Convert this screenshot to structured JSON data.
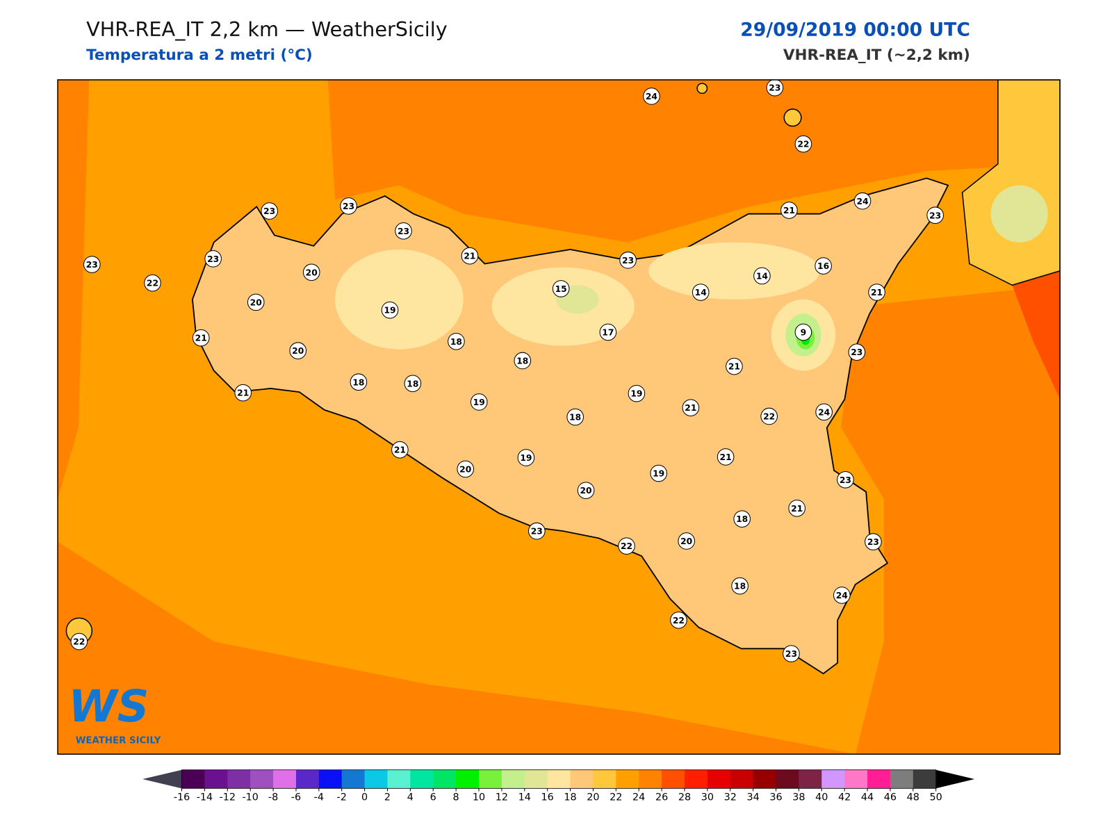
{
  "header": {
    "title": "VHR-REA_IT 2,2 km — WeatherSicily",
    "subtitle": "Temperatura a 2 metri (°C)",
    "valid_time": "29/09/2019 00:00 UTC",
    "model": "VHR-REA_IT (~2,2 km)"
  },
  "map": {
    "stations": [
      24,
      23,
      22,
      23,
      23,
      23,
      21,
      24,
      23,
      23,
      23,
      22,
      20,
      20,
      21,
      23,
      15,
      14,
      14,
      16,
      21,
      19,
      21,
      20,
      18,
      17,
      9,
      23,
      18,
      21,
      18,
      18,
      21,
      19,
      19,
      21,
      22,
      24,
      18,
      21,
      19,
      21,
      20,
      19,
      23,
      20,
      21,
      18,
      23,
      22,
      20,
      23,
      18,
      24,
      22,
      23,
      22
    ]
  },
  "logo": {
    "mark": "WS",
    "name": "WEATHER SICILY"
  },
  "colorbar": {
    "ticks": [
      -16,
      -14,
      -12,
      -10,
      -8,
      -6,
      -4,
      -2,
      0,
      2,
      4,
      6,
      8,
      10,
      12,
      14,
      16,
      18,
      20,
      22,
      24,
      26,
      28,
      30,
      32,
      34,
      36,
      38,
      40,
      42,
      44,
      46,
      48,
      50
    ],
    "colors": [
      "#4b0055",
      "#6a1190",
      "#7f2fa5",
      "#a050be",
      "#e070e8",
      "#5a28c8",
      "#0a10f5",
      "#1478d2",
      "#0ac8e6",
      "#5af0d2",
      "#00e6a0",
      "#00e664",
      "#00f000",
      "#78f03c",
      "#c3f08c",
      "#e1e696",
      "#ffe6a0",
      "#ffc878",
      "#ffc83c",
      "#ffa000",
      "#ff8200",
      "#ff5000",
      "#ff1e00",
      "#e60000",
      "#c80000",
      "#960000",
      "#6e0a1e",
      "#7d2346",
      "#d296ff",
      "#ff78c8",
      "#ff1e96",
      "#7d7d7d",
      "#3c3c3c"
    ],
    "under_color": "#404050",
    "over_color": "#000000"
  }
}
